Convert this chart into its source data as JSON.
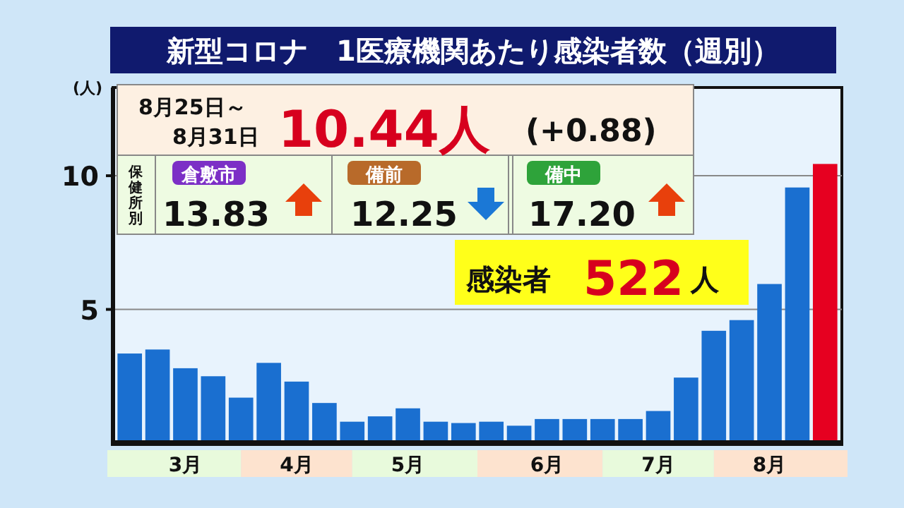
{
  "chart_data": {
    "type": "bar",
    "title": "新型コロナ　1医療機関あたり感染者数（週別）",
    "ylabel": "(人)",
    "categories": [
      null,
      null,
      "3月",
      null,
      null,
      null,
      "4月",
      null,
      null,
      null,
      "5月",
      null,
      null,
      null,
      null,
      "6月",
      null,
      null,
      null,
      "7月",
      null,
      null,
      null,
      "8月",
      null,
      null
    ],
    "values": [
      3.35,
      3.5,
      2.8,
      2.5,
      1.7,
      3.0,
      2.3,
      1.5,
      0.8,
      1.0,
      1.3,
      0.8,
      0.75,
      0.8,
      0.65,
      0.9,
      0.9,
      0.9,
      0.9,
      1.2,
      2.45,
      4.2,
      4.6,
      5.95,
      9.56,
      10.44
    ],
    "colors": [
      "#1a6fd0",
      "#1a6fd0",
      "#1a6fd0",
      "#1a6fd0",
      "#1a6fd0",
      "#1a6fd0",
      "#1a6fd0",
      "#1a6fd0",
      "#1a6fd0",
      "#1a6fd0",
      "#1a6fd0",
      "#1a6fd0",
      "#1a6fd0",
      "#1a6fd0",
      "#1a6fd0",
      "#1a6fd0",
      "#1a6fd0",
      "#1a6fd0",
      "#1a6fd0",
      "#1a6fd0",
      "#1a6fd0",
      "#1a6fd0",
      "#1a6fd0",
      "#1a6fd0",
      "#1a6fd0",
      "#e60020"
    ],
    "ylim": [
      0,
      13.3
    ],
    "yticks": [
      5,
      10
    ],
    "grid": "y",
    "annotations": [
      "8月25日～",
      "8月31日",
      "10.44人",
      "(+0.88)",
      "保健所別",
      "倉敷市",
      "13.83",
      "備前",
      "12.25",
      "備中",
      "17.20",
      "感染者",
      "522",
      "人"
    ]
  }
}
